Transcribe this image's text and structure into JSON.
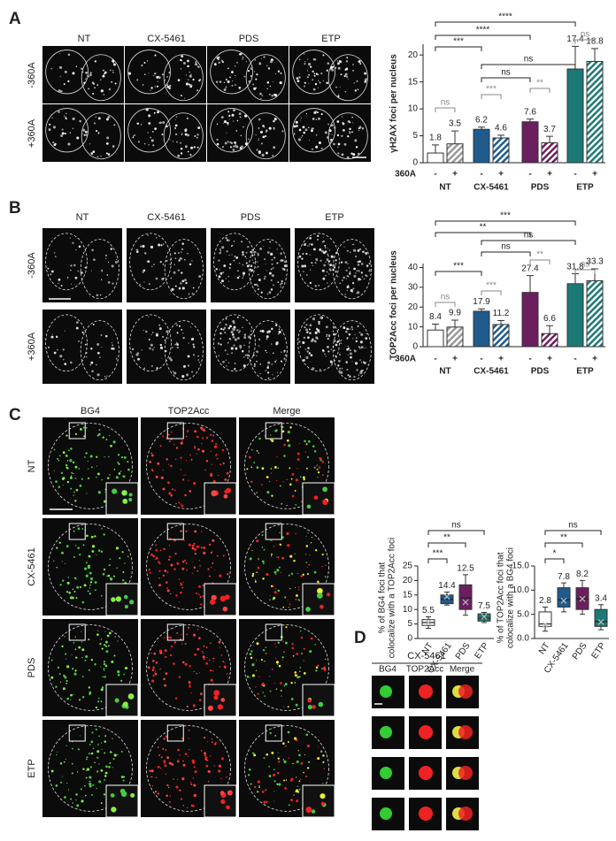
{
  "figure": {
    "panels": [
      "A",
      "B",
      "C",
      "D"
    ],
    "a": {
      "columns": [
        "NT",
        "CX-5461",
        "PDS",
        "ETP"
      ],
      "rows": [
        "-360A",
        "+360A"
      ]
    },
    "b": {
      "columns": [
        "NT",
        "CX-5461",
        "PDS",
        "ETP"
      ],
      "rows": [
        "-360A",
        "+360A"
      ]
    },
    "c": {
      "columns": [
        "BG4",
        "TOP2Acc",
        "Merge"
      ],
      "rows": [
        "NT",
        "CX-5461",
        "PDS",
        "ETP"
      ]
    },
    "d": {
      "title": "CX-5461",
      "columns": [
        "BG4",
        "TOP2Acc",
        "Merge"
      ]
    }
  },
  "chart_data": [
    {
      "type": "bar",
      "y_label": "γH2AX foci per nucleus",
      "group_label": "360A",
      "categories": [
        "NT",
        "CX-5461",
        "PDS",
        "ETP"
      ],
      "colors": [
        "#ffffff",
        "#1e5b8c",
        "#6b1f5e",
        "#1c7a76"
      ],
      "series": [
        {
          "name": "-",
          "values": [
            1.8,
            6.2,
            7.6,
            17.4
          ],
          "errors": [
            1.5,
            0.4,
            0.5,
            4.2
          ]
        },
        {
          "name": "+",
          "hatch": true,
          "values": [
            3.5,
            4.6,
            3.7,
            18.8
          ],
          "errors": [
            2.4,
            0.5,
            1.2,
            2.4
          ]
        }
      ],
      "ylim": [
        0,
        22
      ],
      "yticks": [
        0,
        5,
        10,
        15,
        20
      ],
      "annotations": [
        "****",
        "****",
        "***",
        "ns",
        "ns",
        "ns",
        "**",
        "***",
        "ns"
      ]
    },
    {
      "type": "bar",
      "y_label": "TOP2Acc foci per nucleus",
      "group_label": "360A",
      "categories": [
        "NT",
        "CX-5461",
        "PDS",
        "ETP"
      ],
      "colors": [
        "#ffffff",
        "#1e5b8c",
        "#6b1f5e",
        "#1c7a76"
      ],
      "series": [
        {
          "name": "-",
          "values": [
            8.4,
            17.9,
            27.4,
            31.8
          ],
          "errors": [
            3,
            1.2,
            8.5,
            5
          ]
        },
        {
          "name": "+",
          "hatch": true,
          "values": [
            9.9,
            11.2,
            6.6,
            33.3
          ],
          "errors": [
            3.5,
            2,
            4,
            6
          ]
        }
      ],
      "ylim": [
        0,
        42
      ],
      "yticks": [
        0,
        10,
        20,
        30,
        40
      ],
      "annotations": [
        "***",
        "**",
        "ns",
        "ns",
        "**",
        "ns",
        "***",
        "***",
        "ns"
      ]
    },
    {
      "type": "box",
      "y_label": [
        "% of BG4 foci that",
        "colocalize with a TOP2Acc foci"
      ],
      "categories": [
        "NT",
        "CX-5461",
        "PDS",
        "ETP"
      ],
      "colors": [
        "#ffffff",
        "#1e5b8c",
        "#6b1f5e",
        "#1c7a76"
      ],
      "min": [
        3.5,
        11.5,
        8,
        5.5
      ],
      "q1": [
        4.5,
        12,
        10,
        6
      ],
      "median": [
        5.5,
        13.5,
        14,
        7
      ],
      "q3": [
        6.5,
        15,
        18.5,
        8.5
      ],
      "max": [
        7.5,
        16,
        22,
        9
      ],
      "mean": [
        5.5,
        14.4,
        12.5,
        7.5
      ],
      "ylim": [
        0,
        25
      ],
      "yticks": [
        0,
        5,
        10,
        15,
        20,
        25
      ],
      "annotations": [
        "ns",
        "**",
        "***"
      ]
    },
    {
      "type": "box",
      "y_label": [
        "% of TOP2Acc foci that",
        "colocalize with a BG4 foci"
      ],
      "categories": [
        "NT",
        "CX-5461",
        "PDS",
        "ETP"
      ],
      "colors": [
        "#ffffff",
        "#1e5b8c",
        "#6b1f5e",
        "#1c7a76"
      ],
      "min": [
        1.5,
        5.5,
        5,
        1.8
      ],
      "q1": [
        2.5,
        6.5,
        6,
        2.5
      ],
      "median": [
        3,
        8,
        8.2,
        3.5
      ],
      "q3": [
        5.5,
        10.5,
        10.5,
        6
      ],
      "max": [
        6.5,
        11.5,
        12,
        7
      ],
      "mean": [
        2.8,
        7.8,
        8.2,
        3.4
      ],
      "ylim": [
        0,
        15
      ],
      "yticks": [
        {
          "value": 0,
          "label": "0.0"
        },
        {
          "value": 5,
          "label": "5.0"
        },
        {
          "value": 10,
          "label": "10.0"
        },
        {
          "value": 15,
          "label": "15.0"
        }
      ],
      "annotations": [
        "ns",
        "**",
        "*"
      ]
    }
  ]
}
